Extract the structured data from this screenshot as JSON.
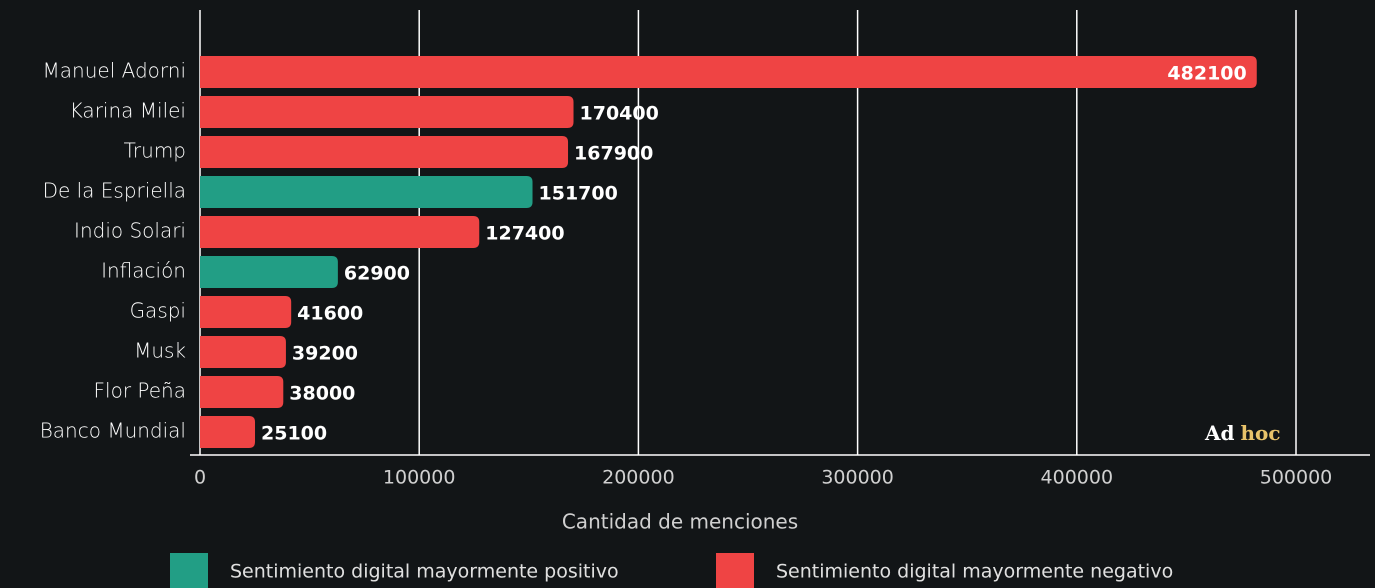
{
  "chart_data": {
    "type": "bar",
    "orientation": "horizontal",
    "categories": [
      "Manuel Adorni",
      "Karina Milei",
      "Trump",
      "De la Espriella",
      "Indio Solari",
      "Inflación",
      "Gaspi",
      "Musk",
      "Flor Peña",
      "Banco Mundial"
    ],
    "values": [
      482100,
      170400,
      167900,
      151700,
      127400,
      62900,
      41600,
      39200,
      38000,
      25100
    ],
    "colors": [
      "#ef4444",
      "#ef4444",
      "#ef4444",
      "#229e85",
      "#ef4444",
      "#229e85",
      "#ef4444",
      "#ef4444",
      "#ef4444",
      "#ef4444"
    ],
    "legend": [
      {
        "name": "Sentimiento digital mayormente positivo",
        "color": "#229e85"
      },
      {
        "name": "Sentimiento digital mayormente negativo",
        "color": "#ef4444"
      }
    ],
    "xlabel": "Cantidad de menciones",
    "xlim": [
      0,
      500000
    ],
    "xticks": [
      0,
      100000,
      200000,
      300000,
      400000,
      500000
    ],
    "grid": true,
    "brand": [
      "Ad",
      "hoc"
    ]
  }
}
